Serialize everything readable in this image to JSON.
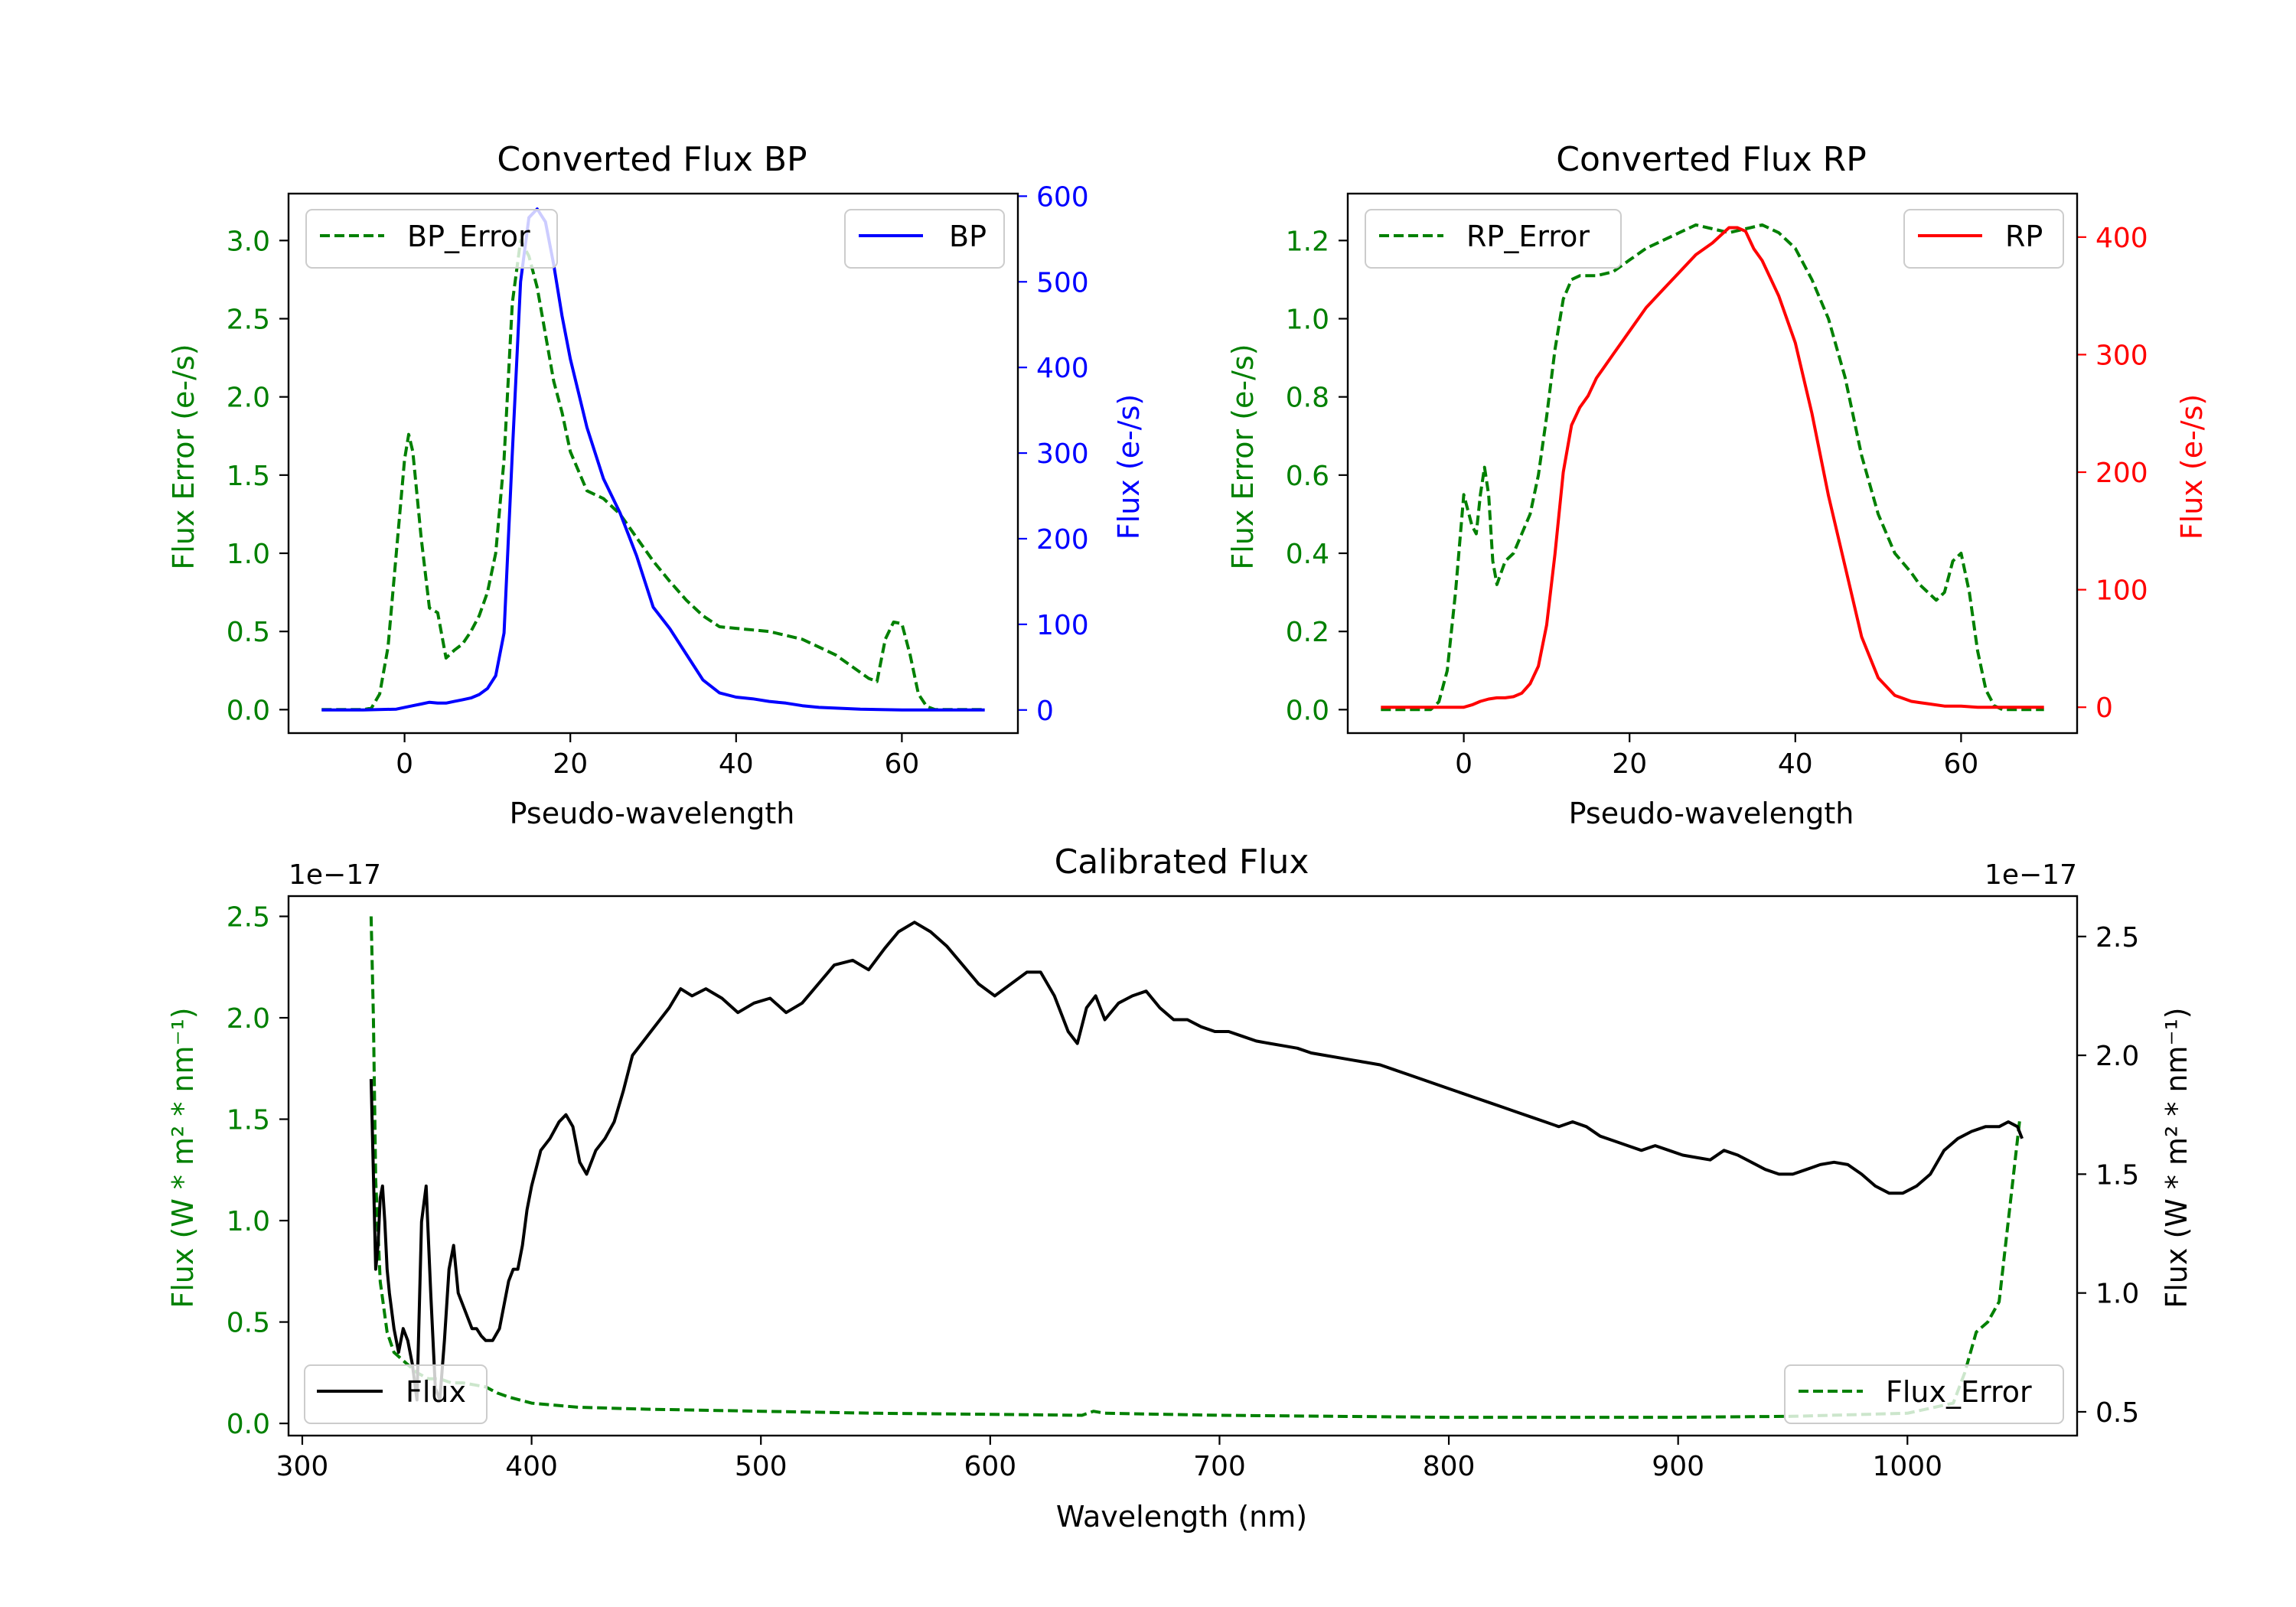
{
  "colors": {
    "bp": "#0000ff",
    "rp": "#ff0000",
    "error": "#008000",
    "flux": "#000000",
    "text": "#000000"
  },
  "chart_data": [
    {
      "id": "bp",
      "type": "line",
      "title": "Converted Flux BP",
      "xlabel": "Pseudo-wavelength",
      "ylabel_left": "Flux Error (e-/s)",
      "ylabel_right": "Flux (e-/s)",
      "xlim": [
        -14,
        74
      ],
      "ylim_left": [
        -0.15,
        3.3
      ],
      "ylim_right": [
        -27,
        603
      ],
      "xticks": [
        0,
        20,
        40,
        60
      ],
      "yticks_left": [
        "0.0",
        "0.5",
        "1.0",
        "1.5",
        "2.0",
        "2.5",
        "3.0"
      ],
      "yticks_right": [
        0,
        100,
        200,
        300,
        400,
        500,
        600
      ],
      "series": [
        {
          "name": "BP_Error",
          "axis": "left",
          "color": "#008000",
          "dash": true,
          "legend_pos": "upper-left",
          "x": [
            -10,
            -5,
            -4,
            -3,
            -2,
            -1,
            0,
            0.5,
            1,
            2,
            3,
            4,
            5,
            6,
            7,
            8,
            9,
            10,
            11,
            12,
            13,
            14,
            15,
            16,
            17,
            18,
            19,
            20,
            22,
            24,
            26,
            28,
            30,
            32,
            34,
            36,
            38,
            40,
            44,
            48,
            52,
            56,
            57,
            58,
            59,
            60,
            61,
            62,
            63,
            64,
            65,
            70
          ],
          "y": [
            0,
            0,
            0.01,
            0.1,
            0.4,
            1.0,
            1.6,
            1.76,
            1.65,
            1.1,
            0.65,
            0.62,
            0.33,
            0.38,
            0.42,
            0.5,
            0.6,
            0.75,
            1.0,
            1.6,
            2.6,
            3.0,
            2.9,
            2.7,
            2.4,
            2.1,
            1.9,
            1.65,
            1.4,
            1.35,
            1.25,
            1.1,
            0.95,
            0.82,
            0.7,
            0.6,
            0.53,
            0.52,
            0.5,
            0.45,
            0.35,
            0.2,
            0.18,
            0.45,
            0.56,
            0.55,
            0.35,
            0.1,
            0.02,
            0,
            0,
            0
          ]
        },
        {
          "name": "BP",
          "axis": "right",
          "color": "#0000ff",
          "dash": false,
          "legend_pos": "upper-right",
          "x": [
            -10,
            -5,
            -1,
            0,
            1,
            2,
            3,
            4,
            5,
            6,
            7,
            8,
            9,
            10,
            11,
            12,
            13,
            14,
            15,
            16,
            17,
            18,
            19,
            20,
            22,
            24,
            26,
            28,
            30,
            32,
            34,
            36,
            38,
            40,
            42,
            44,
            46,
            48,
            50,
            55,
            60,
            65,
            70
          ],
          "y": [
            0,
            0,
            1,
            3,
            5,
            7,
            9,
            8,
            8,
            10,
            12,
            14,
            18,
            25,
            40,
            90,
            300,
            500,
            575,
            585,
            570,
            520,
            460,
            410,
            330,
            270,
            230,
            180,
            120,
            95,
            65,
            35,
            20,
            15,
            13,
            10,
            8,
            5,
            3,
            1,
            0,
            0,
            0
          ]
        }
      ]
    },
    {
      "id": "rp",
      "type": "line",
      "title": "Converted Flux RP",
      "xlabel": "Pseudo-wavelength",
      "ylabel_left": "Flux Error (e-/s)",
      "ylabel_right": "Flux (e-/s)",
      "xlim": [
        -14,
        74
      ],
      "ylim_left": [
        -0.06,
        1.32
      ],
      "ylim_right": [
        -22,
        437
      ],
      "xticks": [
        0,
        20,
        40,
        60
      ],
      "yticks_left": [
        "0.0",
        "0.2",
        "0.4",
        "0.6",
        "0.8",
        "1.0",
        "1.2"
      ],
      "yticks_right": [
        0,
        100,
        200,
        300,
        400
      ],
      "series": [
        {
          "name": "RP_Error",
          "axis": "left",
          "color": "#008000",
          "dash": true,
          "legend_pos": "upper-left",
          "x": [
            -10,
            -5,
            -4,
            -3,
            -2,
            -1,
            0,
            1,
            1.5,
            2,
            2.5,
            3,
            3.5,
            4,
            4.5,
            5,
            6,
            7,
            8,
            9,
            10,
            11,
            12,
            13,
            14,
            15,
            16,
            18,
            20,
            22,
            24,
            26,
            28,
            30,
            32,
            34,
            36,
            38,
            40,
            42,
            44,
            46,
            48,
            50,
            52,
            54,
            55,
            56,
            57,
            58,
            59,
            60,
            61,
            62,
            63,
            64,
            65,
            70
          ],
          "y": [
            0,
            0,
            0,
            0.02,
            0.1,
            0.3,
            0.55,
            0.47,
            0.45,
            0.55,
            0.62,
            0.55,
            0.38,
            0.32,
            0.35,
            0.38,
            0.4,
            0.45,
            0.5,
            0.6,
            0.75,
            0.92,
            1.05,
            1.1,
            1.11,
            1.11,
            1.11,
            1.12,
            1.15,
            1.18,
            1.2,
            1.22,
            1.24,
            1.23,
            1.22,
            1.23,
            1.24,
            1.22,
            1.18,
            1.1,
            1.0,
            0.85,
            0.65,
            0.5,
            0.4,
            0.35,
            0.32,
            0.3,
            0.28,
            0.3,
            0.38,
            0.4,
            0.3,
            0.15,
            0.05,
            0.01,
            0,
            0
          ]
        },
        {
          "name": "RP",
          "axis": "right",
          "color": "#ff0000",
          "dash": false,
          "legend_pos": "upper-right",
          "x": [
            -10,
            -5,
            0,
            1,
            2,
            3,
            4,
            5,
            6,
            7,
            8,
            9,
            10,
            11,
            12,
            13,
            14,
            15,
            16,
            17,
            18,
            20,
            22,
            24,
            26,
            28,
            30,
            32,
            33,
            34,
            35,
            36,
            38,
            40,
            42,
            44,
            46,
            48,
            50,
            52,
            54,
            55,
            56,
            58,
            60,
            62,
            63,
            65,
            70
          ],
          "y": [
            0,
            0,
            0,
            2,
            5,
            7,
            8,
            8,
            9,
            12,
            20,
            35,
            70,
            130,
            200,
            240,
            255,
            265,
            280,
            290,
            300,
            320,
            340,
            355,
            370,
            385,
            395,
            408,
            408,
            405,
            390,
            380,
            350,
            310,
            250,
            180,
            120,
            60,
            25,
            10,
            5,
            4,
            3,
            1,
            1,
            0,
            0,
            0,
            0
          ]
        }
      ]
    },
    {
      "id": "calibrated",
      "type": "line",
      "title": "Calibrated Flux",
      "xlabel": "Wavelength (nm)",
      "ylabel_left": "Flux (W * m² * nm⁻¹)",
      "ylabel_right": "Flux (W * m² * nm⁻¹)",
      "offset_left": "1e−17",
      "offset_right": "1e−17",
      "xlim": [
        294,
        1074
      ],
      "ylim_left": [
        -0.06,
        2.6
      ],
      "ylim_right": [
        0.4,
        2.67
      ],
      "xticks": [
        300,
        400,
        500,
        600,
        700,
        800,
        900,
        1000
      ],
      "yticks_left": [
        "0.0",
        "0.5",
        "1.0",
        "1.5",
        "2.0",
        "2.5"
      ],
      "yticks_right": [
        "0.5",
        "1.0",
        "1.5",
        "2.0",
        "2.5"
      ],
      "series": [
        {
          "name": "Flux_Error",
          "axis": "left",
          "color": "#008000",
          "dash": true,
          "legend_pos": "lower-right",
          "x": [
            330,
            331,
            332,
            334,
            337,
            340,
            345,
            350,
            355,
            360,
            365,
            370,
            375,
            380,
            385,
            390,
            400,
            420,
            450,
            500,
            550,
            600,
            640,
            645,
            650,
            700,
            750,
            800,
            850,
            900,
            950,
            1000,
            1020,
            1025,
            1030,
            1035,
            1040,
            1043,
            1046,
            1049
          ],
          "y": [
            2.5,
            2.0,
            1.2,
            0.7,
            0.45,
            0.35,
            0.3,
            0.25,
            0.22,
            0.22,
            0.2,
            0.2,
            0.19,
            0.18,
            0.15,
            0.13,
            0.1,
            0.08,
            0.07,
            0.06,
            0.05,
            0.045,
            0.04,
            0.06,
            0.05,
            0.04,
            0.035,
            0.03,
            0.03,
            0.03,
            0.035,
            0.05,
            0.1,
            0.25,
            0.45,
            0.5,
            0.6,
            0.9,
            1.2,
            1.5
          ]
        },
        {
          "name": "Flux",
          "axis": "right",
          "color": "#000000",
          "dash": false,
          "legend_pos": "lower-left",
          "x": [
            330,
            331,
            332,
            333,
            334,
            335,
            336,
            337,
            338,
            340,
            342,
            344,
            346,
            348,
            350,
            352,
            354,
            356,
            358,
            360,
            362,
            364,
            366,
            368,
            370,
            372,
            374,
            376,
            378,
            380,
            383,
            386,
            388,
            390,
            392,
            394,
            396,
            398,
            400,
            404,
            408,
            412,
            415,
            418,
            421,
            424,
            428,
            432,
            436,
            440,
            444,
            448,
            452,
            456,
            460,
            465,
            470,
            476,
            483,
            490,
            497,
            504,
            511,
            518,
            525,
            532,
            540,
            547,
            554,
            560,
            567,
            574,
            581,
            588,
            595,
            602,
            609,
            616,
            622,
            628,
            634,
            638,
            642,
            646,
            650,
            656,
            662,
            668,
            674,
            680,
            686,
            692,
            698,
            704,
            710,
            716,
            722,
            728,
            734,
            740,
            746,
            752,
            758,
            764,
            770,
            776,
            782,
            788,
            794,
            800,
            806,
            812,
            818,
            824,
            830,
            836,
            842,
            848,
            854,
            860,
            866,
            872,
            878,
            884,
            890,
            896,
            902,
            908,
            914,
            920,
            926,
            932,
            938,
            944,
            950,
            956,
            962,
            968,
            974,
            980,
            986,
            992,
            998,
            1004,
            1010,
            1016,
            1022,
            1028,
            1034,
            1040,
            1044,
            1048,
            1050
          ],
          "y": [
            1.9,
            1.5,
            1.1,
            1.2,
            1.4,
            1.45,
            1.3,
            1.1,
            1.0,
            0.85,
            0.75,
            0.85,
            0.8,
            0.7,
            0.55,
            1.3,
            1.45,
            1.0,
            0.6,
            0.55,
            0.8,
            1.1,
            1.2,
            1.0,
            0.95,
            0.9,
            0.85,
            0.85,
            0.82,
            0.8,
            0.8,
            0.85,
            0.95,
            1.05,
            1.1,
            1.1,
            1.2,
            1.35,
            1.45,
            1.6,
            1.65,
            1.72,
            1.75,
            1.7,
            1.55,
            1.5,
            1.6,
            1.65,
            1.72,
            1.85,
            2.0,
            2.05,
            2.1,
            2.15,
            2.2,
            2.28,
            2.25,
            2.28,
            2.24,
            2.18,
            2.22,
            2.24,
            2.18,
            2.22,
            2.3,
            2.38,
            2.4,
            2.36,
            2.45,
            2.52,
            2.56,
            2.52,
            2.46,
            2.38,
            2.3,
            2.25,
            2.3,
            2.35,
            2.35,
            2.25,
            2.1,
            2.05,
            2.2,
            2.25,
            2.15,
            2.22,
            2.25,
            2.27,
            2.2,
            2.15,
            2.15,
            2.12,
            2.1,
            2.1,
            2.08,
            2.06,
            2.05,
            2.04,
            2.03,
            2.01,
            2.0,
            1.99,
            1.98,
            1.97,
            1.96,
            1.94,
            1.92,
            1.9,
            1.88,
            1.86,
            1.84,
            1.82,
            1.8,
            1.78,
            1.76,
            1.74,
            1.72,
            1.7,
            1.72,
            1.7,
            1.66,
            1.64,
            1.62,
            1.6,
            1.62,
            1.6,
            1.58,
            1.57,
            1.56,
            1.6,
            1.58,
            1.55,
            1.52,
            1.5,
            1.5,
            1.52,
            1.54,
            1.55,
            1.54,
            1.5,
            1.45,
            1.42,
            1.42,
            1.45,
            1.5,
            1.6,
            1.65,
            1.68,
            1.7,
            1.7,
            1.72,
            1.7,
            1.65
          ]
        }
      ]
    }
  ]
}
